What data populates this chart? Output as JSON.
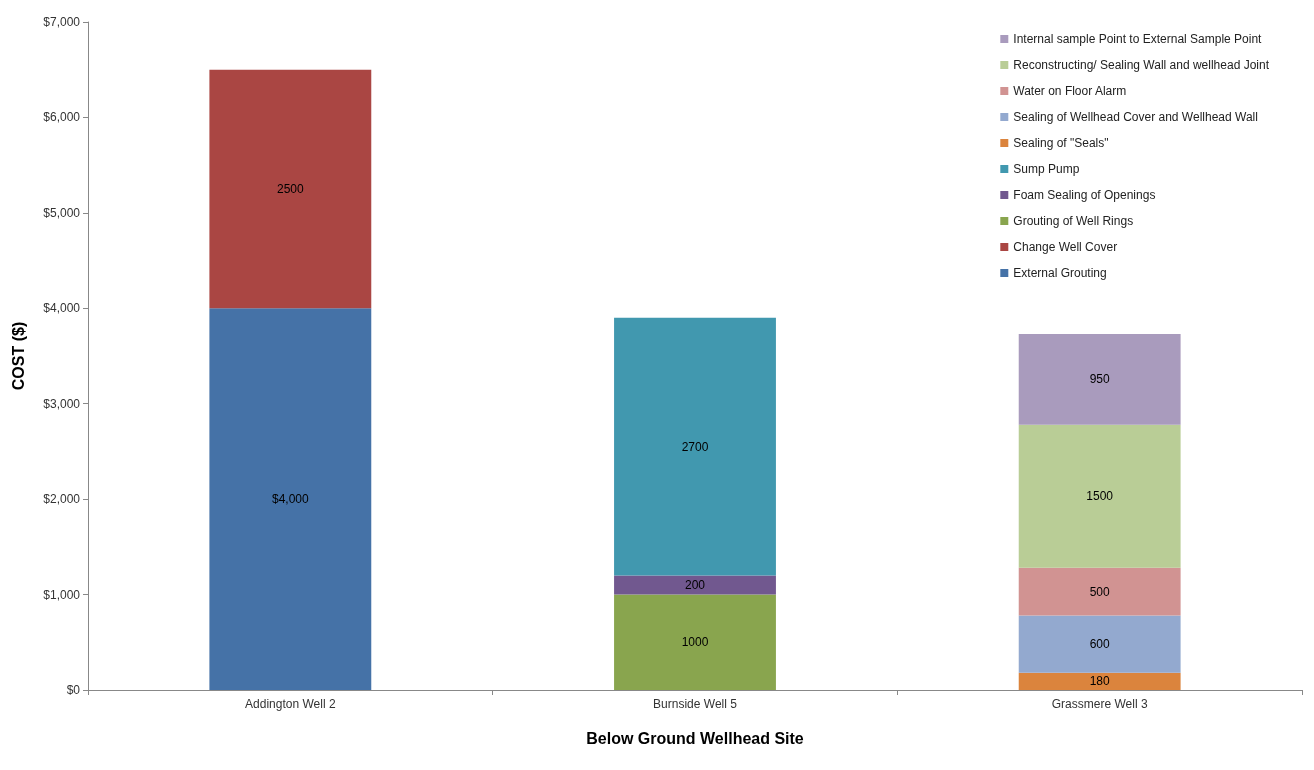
{
  "chart_data": {
    "type": "bar",
    "stacked": true,
    "xlabel": "Below Ground Wellhead Site",
    "ylabel": "COST ($)",
    "categories": [
      "Addington Well 2",
      "Burnside Well 5",
      "Grassmere Well 3"
    ],
    "ylim": [
      0,
      7000
    ],
    "yticks": [
      {
        "value": 0,
        "label": "$0"
      },
      {
        "value": 1000,
        "label": "$1,000"
      },
      {
        "value": 2000,
        "label": "$2,000"
      },
      {
        "value": 3000,
        "label": "$3,000"
      },
      {
        "value": 4000,
        "label": "$4,000"
      },
      {
        "value": 5000,
        "label": "$5,000"
      },
      {
        "value": 6000,
        "label": "$6,000"
      },
      {
        "value": 7000,
        "label": "$7,000"
      }
    ],
    "grid": false,
    "legend": "top right",
    "series": [
      {
        "name": "External Grouting",
        "color": "#4572a7",
        "values": [
          4000,
          null,
          null
        ],
        "value_labels": [
          "$4,000",
          null,
          null
        ]
      },
      {
        "name": "Change Well Cover",
        "color": "#aa4643",
        "values": [
          2500,
          null,
          null
        ],
        "value_labels": [
          "2500",
          null,
          null
        ]
      },
      {
        "name": "Grouting of Well Rings",
        "color": "#89a54e",
        "values": [
          null,
          1000,
          null
        ],
        "value_labels": [
          null,
          "1000",
          null
        ]
      },
      {
        "name": "Foam Sealing of Openings",
        "color": "#71588f",
        "values": [
          null,
          200,
          null
        ],
        "value_labels": [
          null,
          "200",
          null
        ]
      },
      {
        "name": "Sump Pump",
        "color": "#4198af",
        "values": [
          null,
          2700,
          null
        ],
        "value_labels": [
          null,
          "2700",
          null
        ]
      },
      {
        "name": "Sealing of \"Seals\"",
        "color": "#db843d",
        "values": [
          null,
          null,
          180
        ],
        "value_labels": [
          null,
          null,
          "180"
        ]
      },
      {
        "name": "Sealing of Wellhead Cover and Wellhead Wall",
        "color": "#93a9cf",
        "values": [
          null,
          null,
          600
        ],
        "value_labels": [
          null,
          null,
          "600"
        ]
      },
      {
        "name": "Water on Floor Alarm",
        "color": "#d19392",
        "values": [
          null,
          null,
          500
        ],
        "value_labels": [
          null,
          null,
          "500"
        ]
      },
      {
        "name": "Reconstructing/ Sealing Wall and wellhead Joint",
        "color": "#b9cd96",
        "values": [
          null,
          null,
          1500
        ],
        "value_labels": [
          null,
          null,
          "1500"
        ]
      },
      {
        "name": "Internal sample Point to External Sample Point",
        "color": "#a99bbd",
        "values": [
          null,
          null,
          950
        ],
        "value_labels": [
          null,
          null,
          "950"
        ]
      }
    ]
  }
}
